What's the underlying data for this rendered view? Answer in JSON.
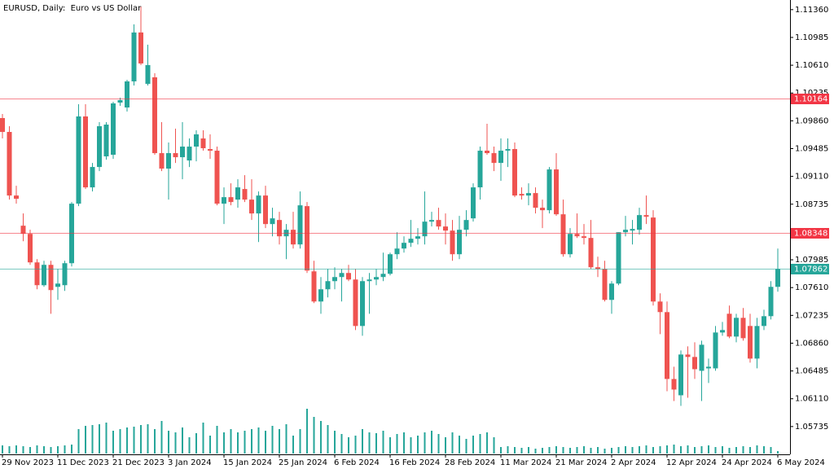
{
  "chart_data": {
    "type": "candlestick",
    "title": "EURUSD, Daily:  Euro vs US Dollar",
    "up_color": "#26a69a",
    "down_color": "#ef5350",
    "ylim": [
      1.0536,
      1.1149
    ],
    "yticks": [
      {
        "value": 1.1136,
        "label": "1.11360"
      },
      {
        "value": 1.10985,
        "label": "1.10985"
      },
      {
        "value": 1.1061,
        "label": "1.10610"
      },
      {
        "value": 1.10235,
        "label": "1.10235"
      },
      {
        "value": 1.0986,
        "label": "1.09860"
      },
      {
        "value": 1.09485,
        "label": "1.09485"
      },
      {
        "value": 1.0911,
        "label": "1.09110"
      },
      {
        "value": 1.08735,
        "label": "1.08735"
      },
      {
        "value": 1.07985,
        "label": "1.07985"
      },
      {
        "value": 1.0761,
        "label": "1.07610"
      },
      {
        "value": 1.07235,
        "label": "1.07235"
      },
      {
        "value": 1.0686,
        "label": "1.06860"
      },
      {
        "value": 1.06485,
        "label": "1.06485"
      },
      {
        "value": 1.0611,
        "label": "1.06110"
      },
      {
        "value": 1.05735,
        "label": "1.05735"
      }
    ],
    "hlines": [
      {
        "value": 1.10164,
        "color": "#f23645"
      },
      {
        "value": 1.08348,
        "color": "#f23645"
      },
      {
        "value": 1.07862,
        "color": "#26a69a"
      }
    ],
    "categories": [
      "29 Nov 2023",
      null,
      null,
      null,
      null,
      null,
      null,
      null,
      "11 Dec 2023",
      null,
      null,
      null,
      null,
      null,
      null,
      null,
      "21 Dec 2023",
      null,
      null,
      null,
      null,
      null,
      null,
      null,
      "3 Jan 2024",
      null,
      null,
      null,
      null,
      null,
      null,
      null,
      "15 Jan 2024",
      null,
      null,
      null,
      null,
      null,
      null,
      null,
      "25 Jan 2024",
      null,
      null,
      null,
      null,
      null,
      null,
      null,
      "6 Feb 2024",
      null,
      null,
      null,
      null,
      null,
      null,
      null,
      "16 Feb 2024",
      null,
      null,
      null,
      null,
      null,
      null,
      null,
      "28 Feb 2024",
      null,
      null,
      null,
      null,
      null,
      null,
      null,
      "11 Mar 2024",
      null,
      null,
      null,
      null,
      null,
      null,
      null,
      "21 Mar 2024",
      null,
      null,
      null,
      null,
      null,
      null,
      null,
      "2 Apr 2024",
      null,
      null,
      null,
      null,
      null,
      null,
      null,
      "12 Apr 2024",
      null,
      null,
      null,
      null,
      null,
      null,
      null,
      "24 Apr 2024",
      null,
      null,
      null,
      null,
      null,
      null,
      null,
      "6 May 2024"
    ],
    "open": [
      1.09897,
      1.0971,
      1.08852,
      1.08445,
      1.08335,
      1.0795,
      1.07642,
      1.07917,
      1.0762,
      1.07642,
      1.07939,
      1.08742,
      1.09919,
      1.08962,
      1.09237,
      1.0938,
      1.09402,
      1.10106,
      1.1004,
      1.10392,
      1.11052,
      1.10359,
      1.10447,
      1.09424,
      1.09215,
      1.09424,
      1.09369,
      1.09325,
      1.09512,
      1.09622,
      1.09479,
      1.09457,
      1.08742,
      1.0883,
      1.08797,
      1.0894,
      1.08797,
      1.0861,
      1.08852,
      1.08467,
      1.08522,
      1.08302,
      1.0839,
      1.08192,
      1.08709,
      1.07829,
      1.07422,
      1.07587,
      1.07697,
      1.07752,
      1.07807,
      1.07719,
      1.07092,
      1.07697,
      1.07719,
      1.07752,
      1.07796,
      1.0806,
      1.08137,
      1.08214,
      1.08269,
      1.08302,
      1.085,
      1.08522,
      1.08434,
      1.08379,
      1.0806,
      1.0839,
      1.08544,
      1.08962,
      1.09457,
      1.09424,
      1.09292,
      1.09457,
      1.09479,
      1.08874,
      1.08852,
      1.08885,
      1.08687,
      1.08654,
      1.09204,
      1.08599,
      1.0806,
      1.08335,
      1.08302,
      1.0828,
      1.07884,
      1.07862,
      1.07444,
      1.07664,
      1.08357,
      1.08379,
      1.0839,
      1.08588,
      1.08555,
      1.07422,
      1.07279,
      1.06377,
      1.06157,
      1.06707,
      1.06674,
      1.06487,
      1.0652,
      1.0652,
      1.07004,
      1.07257,
      1.06949,
      1.07202,
      1.07092,
      1.06652,
      1.07092,
      1.07224,
      1.0762
    ],
    "high": [
      1.09952,
      1.09787,
      1.08984,
      1.0861,
      1.0839,
      1.07994,
      1.07972,
      1.07972,
      1.07862,
      1.07972,
      1.08764,
      1.10084,
      1.10084,
      1.09292,
      1.09842,
      1.09842,
      1.10117,
      1.10172,
      1.10414,
      1.11162,
      1.11404,
      1.10887,
      1.10502,
      1.09842,
      1.09567,
      1.09754,
      1.09842,
      1.09622,
      1.09732,
      1.09732,
      1.09677,
      1.09512,
      1.08962,
      1.09017,
      1.09072,
      1.09127,
      1.09072,
      1.08907,
      1.08984,
      1.08687,
      1.08632,
      1.08467,
      1.08632,
      1.08907,
      1.08764,
      1.07972,
      1.07752,
      1.07862,
      1.07884,
      1.07862,
      1.07917,
      1.07862,
      1.07752,
      1.07807,
      1.07862,
      1.08082,
      1.08082,
      1.08357,
      1.08302,
      1.08522,
      1.08412,
      1.08907,
      1.08632,
      1.08687,
      1.0861,
      1.08522,
      1.08577,
      1.08654,
      1.09017,
      1.09512,
      1.0982,
      1.09512,
      1.09622,
      1.09622,
      1.09567,
      1.08962,
      1.09017,
      1.08962,
      1.08797,
      1.09237,
      1.09424,
      1.08797,
      1.08412,
      1.0861,
      1.08467,
      1.08522,
      1.08027,
      1.07972,
      1.07697,
      1.08357,
      1.08577,
      1.08522,
      1.08687,
      1.08852,
      1.08654,
      1.07532,
      1.07422,
      1.06542,
      1.06762,
      1.06817,
      1.06872,
      1.06894,
      1.06652,
      1.07092,
      1.07147,
      1.07367,
      1.07257,
      1.07334,
      1.07257,
      1.07202,
      1.07312,
      1.07697,
      1.08137
    ],
    "low": [
      1.09622,
      1.08797,
      1.08742,
      1.08236,
      1.07917,
      1.07587,
      1.0762,
      1.07257,
      1.07444,
      1.07565,
      1.07895,
      1.08709,
      1.0894,
      1.08907,
      1.09182,
      1.09336,
      1.09347,
      1.10062,
      1.09985,
      1.10337,
      1.10612,
      1.10337,
      1.09402,
      1.09182,
      1.08797,
      1.09292,
      1.09072,
      1.09237,
      1.09314,
      1.09457,
      1.09347,
      1.0872,
      1.08467,
      1.0872,
      1.08687,
      1.08764,
      1.08522,
      1.08225,
      1.08412,
      1.08302,
      1.08192,
      1.07994,
      1.08137,
      1.08137,
      1.07807,
      1.074,
      1.07257,
      1.07477,
      1.07587,
      1.07422,
      1.07697,
      1.07037,
      1.0696,
      1.07257,
      1.07642,
      1.07697,
      1.07774,
      1.07994,
      1.08082,
      1.08159,
      1.08192,
      1.08192,
      1.08434,
      1.0839,
      1.08192,
      1.07972,
      1.07994,
      1.08302,
      1.085,
      1.08797,
      1.09402,
      1.09182,
      1.0905,
      1.09237,
      1.0883,
      1.08797,
      1.0872,
      1.0861,
      1.08412,
      1.0861,
      1.08577,
      1.08027,
      1.08016,
      1.0828,
      1.08192,
      1.07862,
      1.07752,
      1.07422,
      1.07257,
      1.07642,
      1.08302,
      1.08192,
      1.08324,
      1.08467,
      1.07367,
      1.06982,
      1.06212,
      1.0608,
      1.06014,
      1.06124,
      1.06377,
      1.0608,
      1.06322,
      1.06487,
      1.0696,
      1.06927,
      1.06872,
      1.06894,
      1.06597,
      1.0652,
      1.07037,
      1.0718,
      1.07554
    ],
    "close": [
      1.0971,
      1.08852,
      1.08808,
      1.08335,
      1.0795,
      1.07642,
      1.07917,
      1.07576,
      1.07664,
      1.07939,
      1.08742,
      1.09919,
      1.08962,
      1.09237,
      1.09787,
      1.09809,
      1.10095,
      1.10139,
      1.10392,
      1.11052,
      1.10634,
      1.10612,
      1.09424,
      1.09215,
      1.09424,
      1.09369,
      1.09512,
      1.09512,
      1.09677,
      1.0949,
      1.09457,
      1.08742,
      1.0883,
      1.08764,
      1.08962,
      1.08797,
      1.0861,
      1.08852,
      1.08467,
      1.08544,
      1.08302,
      1.0839,
      1.08192,
      1.0872,
      1.0784,
      1.07422,
      1.07587,
      1.07697,
      1.07752,
      1.07807,
      1.07719,
      1.07092,
      1.07697,
      1.07719,
      1.07752,
      1.07796,
      1.0806,
      1.08137,
      1.08214,
      1.08269,
      1.08302,
      1.085,
      1.08522,
      1.08434,
      1.08379,
      1.0806,
      1.0839,
      1.08522,
      1.08962,
      1.09457,
      1.09424,
      1.09292,
      1.09457,
      1.09479,
      1.08852,
      1.08852,
      1.08885,
      1.08687,
      1.08654,
      1.09204,
      1.08599,
      1.0806,
      1.08335,
      1.08302,
      1.0828,
      1.07884,
      1.07862,
      1.07444,
      1.07664,
      1.08357,
      1.0839,
      1.08401,
      1.08588,
      1.08566,
      1.07422,
      1.07279,
      1.06377,
      1.06234,
      1.06707,
      1.06674,
      1.06509,
      1.06839,
      1.06542,
      1.07004,
      1.07037,
      1.06949,
      1.07202,
      1.06927,
      1.06652,
      1.07092,
      1.07224,
      1.0762,
      1.07862
    ],
    "volume_color": "#26a69a",
    "volume": [
      10,
      9,
      10,
      9,
      8,
      10,
      9,
      8,
      9,
      10,
      11,
      30,
      34,
      35,
      36,
      38,
      28,
      30,
      32,
      33,
      35,
      36,
      30,
      40,
      28,
      26,
      32,
      20,
      25,
      38,
      22,
      34,
      26,
      30,
      26,
      28,
      30,
      32,
      28,
      34,
      30,
      36,
      22,
      30,
      55,
      45,
      40,
      35,
      28,
      24,
      20,
      22,
      30,
      26,
      25,
      28,
      20,
      24,
      26,
      20,
      22,
      26,
      28,
      24,
      20,
      26,
      22,
      18,
      22,
      24,
      26,
      20,
      8,
      9,
      8,
      7,
      8,
      6,
      7,
      8,
      9,
      8,
      7,
      8,
      9,
      7,
      8,
      6,
      7,
      8,
      9,
      8,
      9,
      10,
      8,
      9,
      10,
      11,
      9,
      10,
      8,
      9,
      10,
      8,
      9,
      7,
      8,
      9,
      8,
      10,
      9,
      8,
      3
    ]
  }
}
